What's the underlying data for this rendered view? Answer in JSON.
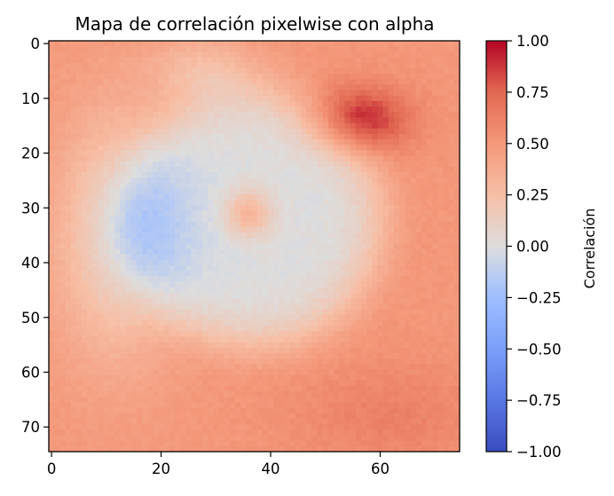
{
  "chart_data": {
    "type": "heatmap",
    "title": "Mapa de correlación pixelwise con alpha",
    "xlabel": "",
    "ylabel": "",
    "grid": false,
    "colormap": "coolwarm",
    "grid_size": [
      75,
      75
    ],
    "xlim": [
      -0.5,
      74.5
    ],
    "ylim": [
      74.5,
      -0.5
    ],
    "x_ticks": [
      0,
      20,
      40,
      60
    ],
    "y_ticks": [
      0,
      10,
      20,
      30,
      40,
      50,
      60,
      70
    ],
    "x_tick_labels": [
      "0",
      "20",
      "40",
      "60"
    ],
    "y_tick_labels": [
      "0",
      "10",
      "20",
      "30",
      "40",
      "50",
      "60",
      "70"
    ],
    "colorbar": {
      "label": "Correlación",
      "range": [
        -1.0,
        1.0
      ],
      "ticks": [
        1.0,
        0.75,
        0.5,
        0.25,
        0.0,
        -0.25,
        -0.5,
        -0.75,
        -1.0
      ],
      "tick_labels": [
        "1.00",
        "0.75",
        "0.50",
        "0.25",
        "0.00",
        "−0.25",
        "−0.50",
        "−0.75",
        "−1.00"
      ]
    },
    "regions": [
      {
        "description": "left-center negative lobe",
        "center": [
          12,
          35
        ],
        "peak": -0.42
      },
      {
        "description": "central ring near zero",
        "center": [
          37,
          32
        ],
        "peak": 0.0
      },
      {
        "description": "central positive spot",
        "center": [
          36,
          31
        ],
        "peak": 0.3
      },
      {
        "description": "upper-right hotspot",
        "center": [
          56,
          14
        ],
        "peak": 0.9
      },
      {
        "description": "outer border positive",
        "peak": 0.55
      }
    ]
  }
}
